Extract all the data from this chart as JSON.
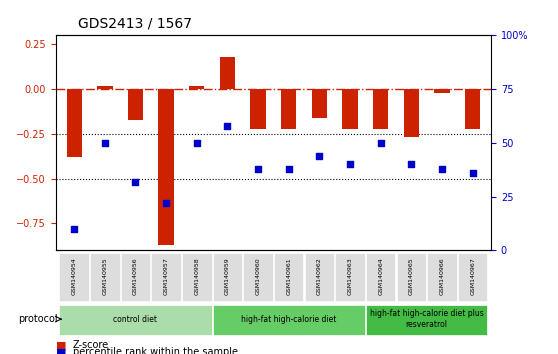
{
  "title": "GDS2413 / 1567",
  "samples": [
    "GSM140954",
    "GSM140955",
    "GSM140956",
    "GSM140957",
    "GSM140958",
    "GSM140959",
    "GSM140960",
    "GSM140961",
    "GSM140962",
    "GSM140963",
    "GSM140964",
    "GSM140965",
    "GSM140966",
    "GSM140967"
  ],
  "zscore": [
    -0.38,
    0.02,
    -0.17,
    -0.87,
    0.02,
    0.18,
    -0.22,
    -0.22,
    -0.16,
    -0.22,
    -0.22,
    -0.27,
    -0.02,
    -0.22
  ],
  "percentile": [
    10,
    50,
    32,
    22,
    50,
    58,
    38,
    38,
    44,
    40,
    50,
    40,
    38,
    36
  ],
  "bar_color": "#cc2200",
  "dot_color": "#0000cc",
  "hline_color": "#cc2200",
  "hline_style": "-.",
  "dot_hline_color": "#000000",
  "dot_hline_style": ":",
  "ylim_left": [
    -0.9,
    0.3
  ],
  "ylim_right": [
    0,
    100
  ],
  "yticks_left": [
    0.25,
    0,
    -0.25,
    -0.5,
    -0.75
  ],
  "yticks_right": [
    100,
    75,
    50,
    25,
    0
  ],
  "groups": [
    {
      "label": "control diet",
      "start": 0,
      "end": 4,
      "color": "#aaddaa"
    },
    {
      "label": "high-fat high-calorie diet",
      "start": 5,
      "end": 9,
      "color": "#66cc66"
    },
    {
      "label": "high-fat high-calorie diet plus\nresveratrol",
      "start": 10,
      "end": 13,
      "color": "#44bb44"
    }
  ],
  "legend_zscore_label": "Z-score",
  "legend_pct_label": "percentile rank within the sample",
  "xlabel_protocol": "protocol",
  "bg_color": "#ffffff",
  "tick_label_bg": "#dddddd"
}
